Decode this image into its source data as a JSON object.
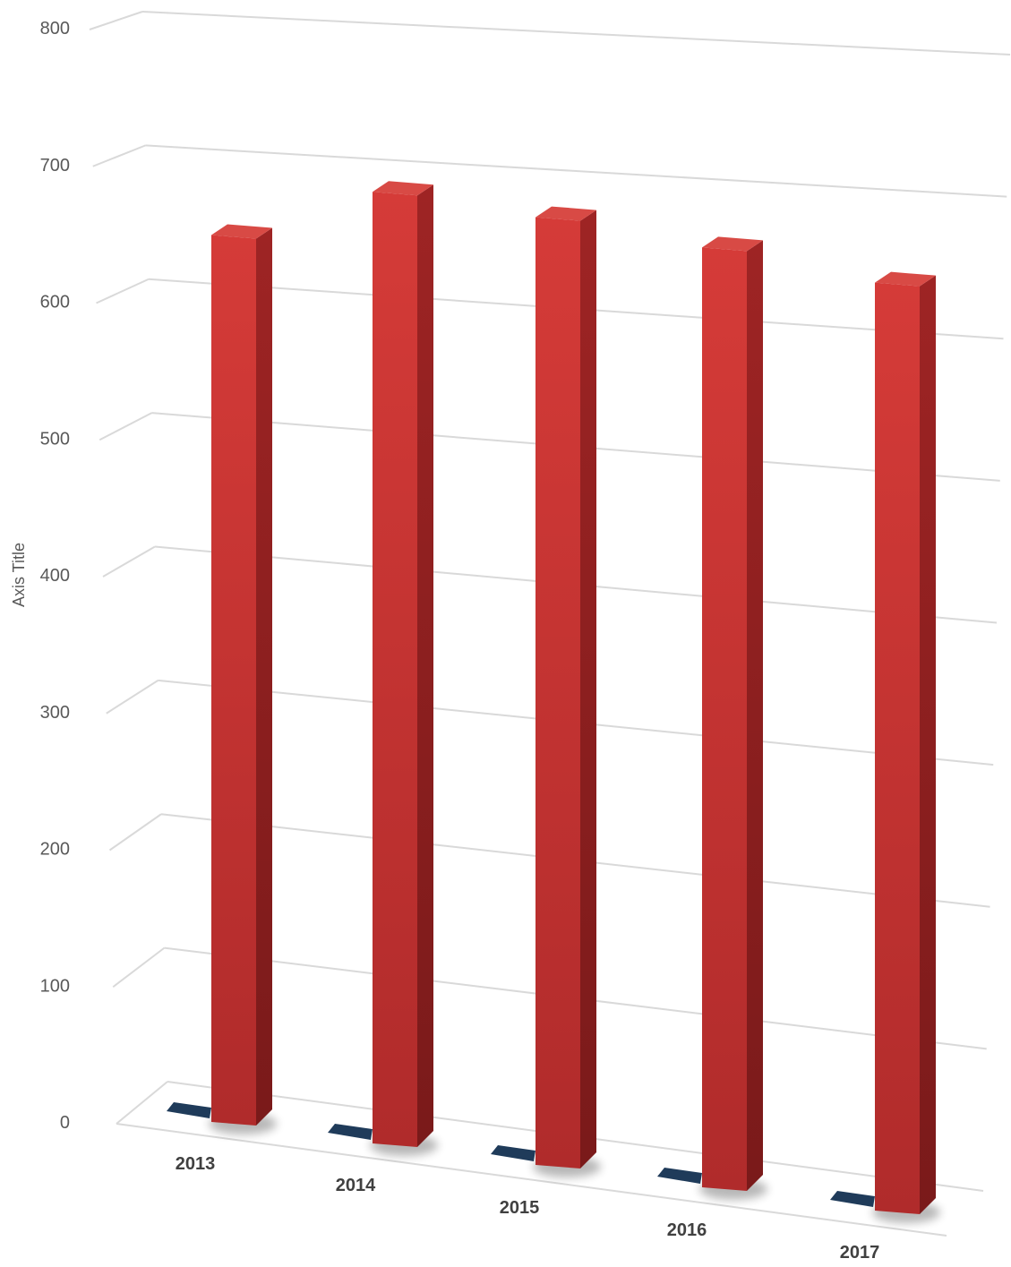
{
  "chart_data": {
    "type": "bar",
    "categories": [
      "2013",
      "2014",
      "2015",
      "2016",
      "2017"
    ],
    "series": [
      {
        "values": [
          2,
          2,
          2,
          2,
          2
        ],
        "color": "#1f3b5a"
      },
      {
        "values": [
          650,
          700,
          700,
          697,
          691
        ],
        "color": "#c43131"
      }
    ],
    "ylabel": "Axis Title",
    "xlabel": "",
    "yticks": [
      "0",
      "100",
      "200",
      "300",
      "400",
      "500",
      "600",
      "700",
      "800"
    ],
    "ylim": [
      0,
      800
    ],
    "grid": true,
    "view": "3d-perspective"
  }
}
